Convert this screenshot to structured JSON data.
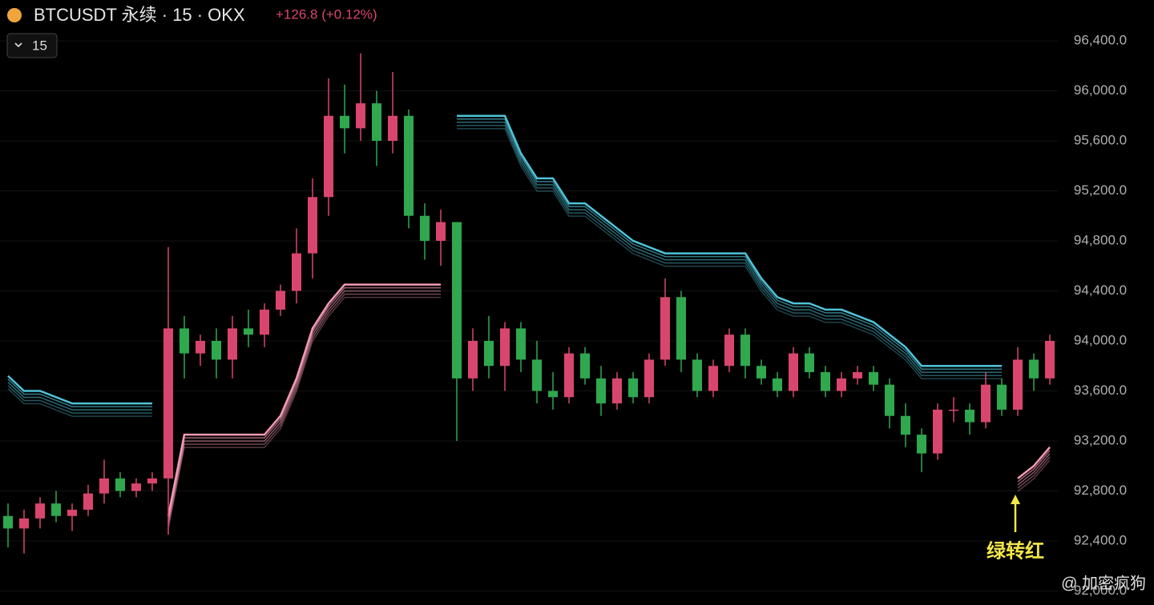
{
  "chart_data": {
    "type": "candlestick",
    "title": "BTCUSDT 永续 · 15 · OKX",
    "change": "+126.8 (+0.12%)",
    "interval": "15",
    "annotation": "绿转红",
    "watermark": "@ 加密疯狗",
    "up_color": "#d9466d",
    "down_color": "#2fa84f",
    "ylim": [
      91888,
      96726
    ],
    "yticks": [
      {
        "value": 96400,
        "label": "96,400.0"
      },
      {
        "value": 96000,
        "label": "96,000.0"
      },
      {
        "value": 95600,
        "label": "95,600.0"
      },
      {
        "value": 95200,
        "label": "95,200.0"
      },
      {
        "value": 94800,
        "label": "94,800.0"
      },
      {
        "value": 94400,
        "label": "94,400.0"
      },
      {
        "value": 94000,
        "label": "94,000.0"
      },
      {
        "value": 93600,
        "label": "93,600.0"
      },
      {
        "value": 93200,
        "label": "93,200.0"
      },
      {
        "value": 92800,
        "label": "92,800.0"
      },
      {
        "value": 92400,
        "label": "92,400.0"
      },
      {
        "value": 92000,
        "label": "92,000.0"
      }
    ],
    "grid": true,
    "open": [
      92600,
      92500,
      92580,
      92700,
      92600,
      92650,
      92780,
      92900,
      92800,
      92860,
      92900,
      94100,
      93900,
      94000,
      93850,
      94100,
      94050,
      94250,
      94400,
      94700,
      95150,
      95800,
      95700,
      95900,
      95600,
      95800,
      95000,
      94800,
      94950,
      93700,
      94000,
      93800,
      94100,
      93850,
      93600,
      93550,
      93900,
      93700,
      93500,
      93700,
      93550,
      93850,
      94350,
      93850,
      93600,
      93800,
      94050,
      93800,
      93700,
      93600,
      93900,
      93750,
      93600,
      93700,
      93750,
      93650,
      93400,
      93250,
      93100,
      93450,
      93450,
      93350,
      93650,
      93450,
      93850,
      93700
    ],
    "high": [
      92700,
      92650,
      92750,
      92800,
      92700,
      92850,
      93050,
      92950,
      92900,
      92950,
      94750,
      94200,
      94050,
      94100,
      94200,
      94250,
      94300,
      94450,
      94900,
      95300,
      96100,
      96050,
      96300,
      96000,
      96150,
      95850,
      95100,
      95050,
      94950,
      94100,
      94200,
      94150,
      94150,
      94000,
      93750,
      93950,
      93950,
      93800,
      93750,
      93750,
      93900,
      94500,
      94400,
      93900,
      93850,
      94100,
      94100,
      93850,
      93750,
      93950,
      93950,
      93800,
      93750,
      93800,
      93800,
      93700,
      93500,
      93300,
      93500,
      93550,
      93500,
      93750,
      93700,
      93950,
      93900,
      94050
    ],
    "low": [
      92350,
      92300,
      92500,
      92550,
      92480,
      92600,
      92700,
      92750,
      92750,
      92800,
      92450,
      93700,
      93800,
      93700,
      93700,
      93950,
      93950,
      94200,
      94300,
      94500,
      95000,
      95500,
      95600,
      95400,
      95500,
      94900,
      94650,
      94600,
      93200,
      93600,
      93700,
      93600,
      93750,
      93500,
      93450,
      93500,
      93650,
      93400,
      93450,
      93500,
      93500,
      93800,
      93750,
      93550,
      93550,
      93750,
      93700,
      93650,
      93550,
      93550,
      93700,
      93550,
      93550,
      93650,
      93600,
      93300,
      93150,
      92950,
      93050,
      93350,
      93250,
      93300,
      93400,
      93400,
      93600,
      93650
    ],
    "close": [
      92500,
      92580,
      92700,
      92600,
      92650,
      92780,
      92900,
      92800,
      92860,
      92900,
      94100,
      93900,
      94000,
      93850,
      94100,
      94050,
      94250,
      94400,
      94700,
      95150,
      95800,
      95700,
      95900,
      95600,
      95800,
      95000,
      94800,
      94950,
      93700,
      94000,
      93800,
      94100,
      93850,
      93600,
      93550,
      93900,
      93700,
      93500,
      93700,
      93550,
      93850,
      94350,
      93850,
      93600,
      93800,
      94050,
      93800,
      93700,
      93600,
      93900,
      93750,
      93600,
      93700,
      93750,
      93650,
      93400,
      93250,
      93100,
      93450,
      93450,
      93350,
      93650,
      93450,
      93850,
      93700,
      94000
    ],
    "series": [
      {
        "color": "#4fc3d9",
        "values": [
          93720,
          93600,
          93600,
          93550,
          93500,
          93500,
          93500,
          93500,
          93500,
          93500,
          null,
          null,
          null,
          null,
          null,
          null,
          null,
          null,
          null,
          null,
          null,
          null,
          null,
          null,
          null,
          null,
          null,
          null,
          95800,
          95800,
          95800,
          95800,
          95500,
          95300,
          95300,
          95100,
          95100,
          95000,
          94900,
          94800,
          94750,
          94700,
          94700,
          94700,
          94700,
          94700,
          94700,
          94500,
          94350,
          94300,
          94300,
          94250,
          94250,
          94200,
          94150,
          94050,
          93950,
          93800,
          93800,
          93800,
          93800,
          93800,
          93800,
          null,
          null,
          null
        ]
      },
      {
        "color": "#f39ab4",
        "values": [
          null,
          null,
          null,
          null,
          null,
          null,
          null,
          null,
          null,
          null,
          92600,
          93250,
          93250,
          93250,
          93250,
          93250,
          93250,
          93400,
          93700,
          94100,
          94300,
          94450,
          94450,
          94450,
          94450,
          94450,
          94450,
          94450,
          null,
          null,
          null,
          null,
          null,
          null,
          null,
          null,
          null,
          null,
          null,
          null,
          null,
          null,
          null,
          null,
          null,
          null,
          null,
          null,
          null,
          null,
          null,
          null,
          null,
          null,
          null,
          null,
          null,
          null,
          null,
          null,
          null,
          null,
          null,
          92900,
          93000,
          93150
        ]
      }
    ]
  }
}
